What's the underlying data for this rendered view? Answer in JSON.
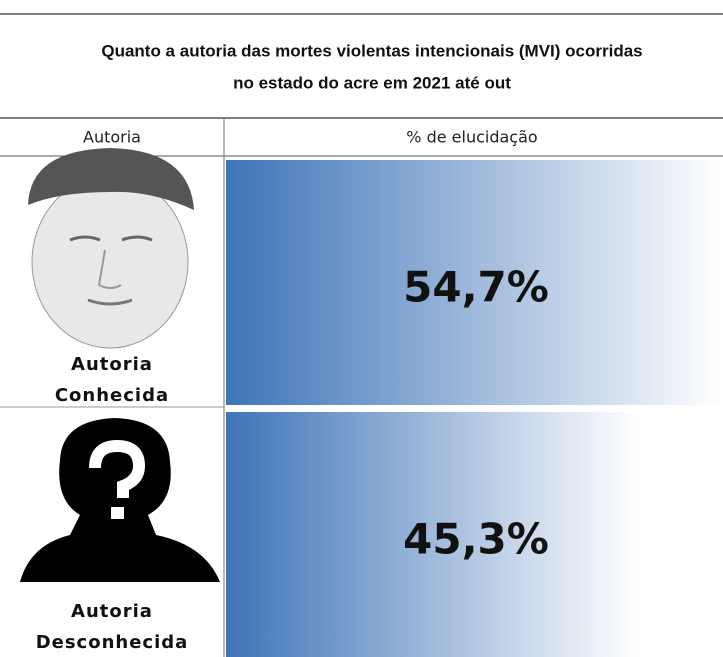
{
  "chart_data": {
    "type": "bar",
    "title": [
      "Quanto a autoria das  mortes violentas intencionais (MVI) ocorridas",
      "no estado do acre em 2021 até out"
    ],
    "columns": [
      "Autoria",
      "% de elucidação"
    ],
    "categories": [
      [
        "Autoria",
        "Conhecida"
      ],
      [
        "Autoria",
        "Desconhecida"
      ]
    ],
    "values": [
      54.7,
      45.3
    ],
    "value_labels": [
      "54,7%",
      "45,3%"
    ],
    "color": "#3e74b8"
  }
}
